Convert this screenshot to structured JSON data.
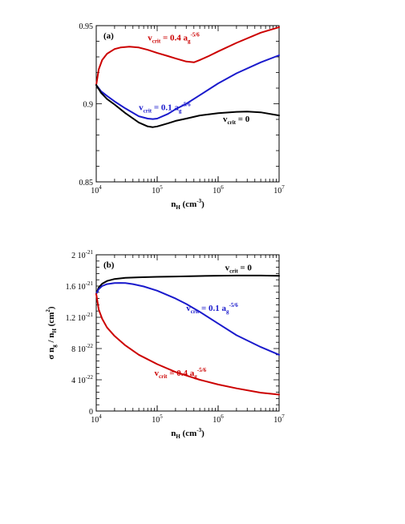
{
  "chart_data": [
    {
      "type": "line",
      "panel_label": "(a)",
      "x_scale": "log",
      "xlim": [
        10000,
        10000000
      ],
      "ylim": [
        0.85,
        0.95
      ],
      "x_ticks": [
        {
          "value": 10000,
          "base": "10",
          "exp": "4"
        },
        {
          "value": 100000,
          "base": "10",
          "exp": "5"
        },
        {
          "value": 1000000,
          "base": "10",
          "exp": "6"
        },
        {
          "value": 10000000,
          "base": "10",
          "exp": "7"
        }
      ],
      "y_ticks": [
        {
          "value": 0.85,
          "label": "0.85"
        },
        {
          "value": 0.9,
          "label": "0.9"
        },
        {
          "value": 0.95,
          "label": "0.95"
        }
      ],
      "xlabel": {
        "main": "n",
        "sub": "H",
        "unit": "(cm",
        "unit_sup": "-3",
        "unit_end": ")"
      },
      "ylabel": {
        "main": ""
      },
      "grid": false,
      "legend": "none",
      "series": [
        {
          "color": "#cc0000",
          "x": [
            10000,
            11000,
            12500,
            15000,
            20000,
            25000,
            35000,
            50000,
            70000,
            100000,
            150000,
            200000,
            300000,
            400000,
            500000,
            700000,
            1000000,
            2000000,
            5000000,
            10000000
          ],
          "y": [
            0.912,
            0.922,
            0.928,
            0.932,
            0.935,
            0.936,
            0.9365,
            0.936,
            0.9345,
            0.9325,
            0.9305,
            0.929,
            0.927,
            0.9265,
            0.928,
            0.9305,
            0.9335,
            0.939,
            0.9455,
            0.949
          ]
        },
        {
          "color": "#1a1acc",
          "x": [
            10000,
            12000,
            15000,
            20000,
            30000,
            50000,
            70000,
            85000,
            100000,
            150000,
            200000,
            300000,
            500000,
            1000000,
            2000000,
            5000000,
            10000000
          ],
          "y": [
            0.912,
            0.908,
            0.905,
            0.9015,
            0.897,
            0.892,
            0.8905,
            0.8902,
            0.8905,
            0.8935,
            0.8965,
            0.9,
            0.9055,
            0.913,
            0.9195,
            0.9265,
            0.931
          ]
        },
        {
          "color": "#000000",
          "x": [
            10000,
            12000,
            15000,
            20000,
            30000,
            50000,
            70000,
            85000,
            100000,
            150000,
            200000,
            300000,
            500000,
            1000000,
            2000000,
            3000000,
            5000000,
            10000000
          ],
          "y": [
            0.912,
            0.907,
            0.903,
            0.8995,
            0.894,
            0.888,
            0.8855,
            0.885,
            0.8855,
            0.8875,
            0.889,
            0.8905,
            0.8925,
            0.894,
            0.8948,
            0.895,
            0.8945,
            0.8925
          ]
        }
      ],
      "annotations": [
        {
          "text": "v",
          "sub": "crit",
          "rest": "= 0.4 a",
          "sub2": "g",
          "sup": "-5/6",
          "color": "#cc0000",
          "x": 70000,
          "y": 0.9405
        },
        {
          "text": "v",
          "sub": "crit",
          "rest": "= 0.1 a",
          "sub2": "g",
          "sup": "-5/6",
          "color": "#1a1acc",
          "x": 50000,
          "y": 0.896
        },
        {
          "text": "v",
          "sub": "crit",
          "rest": "= 0",
          "sub2": "",
          "sup": "",
          "color": "#000000",
          "x": 1200000,
          "y": 0.8885
        }
      ]
    },
    {
      "type": "line",
      "panel_label": "(b)",
      "x_scale": "log",
      "xlim": [
        10000,
        10000000
      ],
      "ylim": [
        0,
        2e-21
      ],
      "x_ticks": [
        {
          "value": 10000,
          "base": "10",
          "exp": "4"
        },
        {
          "value": 100000,
          "base": "10",
          "exp": "5"
        },
        {
          "value": 1000000,
          "base": "10",
          "exp": "6"
        },
        {
          "value": 10000000,
          "base": "10",
          "exp": "7"
        }
      ],
      "y_ticks": [
        {
          "value": 0,
          "label": "0",
          "exp": ""
        },
        {
          "value": 4e-22,
          "label": "4 10",
          "exp": "-22"
        },
        {
          "value": 8e-22,
          "label": "8 10",
          "exp": "-22"
        },
        {
          "value": 1.2e-21,
          "label": "1.2 10",
          "exp": "-21"
        },
        {
          "value": 1.6e-21,
          "label": "1.6 10",
          "exp": "-21"
        },
        {
          "value": 2e-21,
          "label": "2 10",
          "exp": "-21"
        }
      ],
      "xlabel": {
        "main": "n",
        "sub": "H",
        "unit": "(cm",
        "unit_sup": "-3",
        "unit_end": ")"
      },
      "ylabel": {
        "main": "σ n",
        "sub": "g",
        "mid": " / n",
        "sub2": "H",
        "unit": " (cm",
        "unit_sup": "2",
        "unit_end": ")"
      },
      "grid": false,
      "legend": "none",
      "series": [
        {
          "color": "#000000",
          "x": [
            10000,
            11000,
            12500,
            15000,
            20000,
            30000,
            50000,
            100000,
            200000,
            500000,
            1000000,
            2000000,
            5000000,
            10000000
          ],
          "y": [
            1.5e-21,
            1.58e-21,
            1.63e-21,
            1.665e-21,
            1.69e-21,
            1.705e-21,
            1.712e-21,
            1.718e-21,
            1.722e-21,
            1.728e-21,
            1.732e-21,
            1.734e-21,
            1.734e-21,
            1.73e-21
          ]
        },
        {
          "color": "#1a1acc",
          "x": [
            10000,
            11000,
            12500,
            15000,
            20000,
            25000,
            30000,
            40000,
            60000,
            100000,
            200000,
            300000,
            500000,
            1000000,
            2000000,
            5000000,
            10000000
          ],
          "y": [
            1.5e-21,
            1.56e-21,
            1.6e-21,
            1.625e-21,
            1.638e-21,
            1.64e-21,
            1.638e-21,
            1.625e-21,
            1.595e-21,
            1.54e-21,
            1.44e-21,
            1.37e-21,
            1.27e-21,
            1.12e-21,
            9.7e-22,
            8.2e-22,
            7.2e-22
          ]
        },
        {
          "color": "#cc0000",
          "x": [
            10000,
            11000,
            12500,
            15000,
            20000,
            30000,
            50000,
            100000,
            200000,
            500000,
            1000000,
            2000000,
            5000000,
            10000000
          ],
          "y": [
            1.5e-21,
            1.3e-21,
            1.18e-21,
            1.07e-21,
            9.6e-22,
            8.4e-22,
            7.2e-22,
            6e-22,
            5e-22,
            4e-22,
            3.4e-22,
            2.9e-22,
            2.35e-22,
            2.1e-22
          ]
        }
      ],
      "annotations": [
        {
          "text": "v",
          "sub": "crit",
          "rest": "= 0",
          "sub2": "",
          "sup": "",
          "color": "#000000",
          "x": 1300000,
          "y": 1.8e-21
        },
        {
          "text": "v",
          "sub": "crit",
          "rest": "= 0.1 a",
          "sub2": "g",
          "sup": "-5/6",
          "color": "#1a1acc",
          "x": 300000,
          "y": 1.28e-21
        },
        {
          "text": "v",
          "sub": "crit",
          "rest": "= 0.4 a",
          "sub2": "g",
          "sup": "-5/6",
          "color": "#cc0000",
          "x": 90000,
          "y": 4.5e-22
        }
      ]
    }
  ]
}
